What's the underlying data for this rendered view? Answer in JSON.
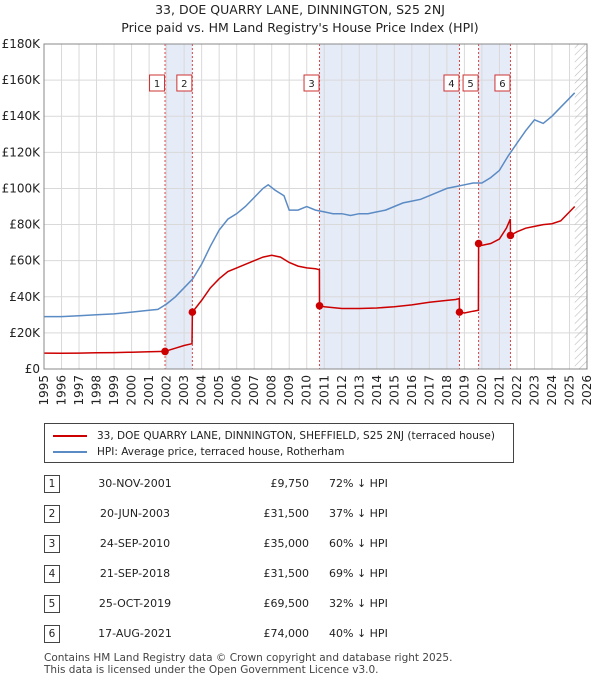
{
  "chart_data": {
    "type": "line",
    "title": "33, DOE QUARRY LANE, DINNINGTON, S25 2NJ",
    "subtitle": "Price paid vs. HM Land Registry's House Price Index (HPI)",
    "xlim": [
      1995,
      2026
    ],
    "ylim": [
      0,
      180000
    ],
    "xticks": [
      1995,
      1996,
      1997,
      1998,
      1999,
      2000,
      2001,
      2002,
      2003,
      2004,
      2005,
      2006,
      2007,
      2008,
      2009,
      2010,
      2011,
      2012,
      2013,
      2014,
      2015,
      2016,
      2017,
      2018,
      2019,
      2020,
      2021,
      2022,
      2023,
      2024,
      2025,
      2026
    ],
    "yticks": [
      0,
      20000,
      40000,
      60000,
      80000,
      100000,
      120000,
      140000,
      160000,
      180000
    ],
    "ytick_labels": [
      "£0",
      "£20K",
      "£40K",
      "£60K",
      "£80K",
      "£100K",
      "£120K",
      "£140K",
      "£160K",
      "£180K"
    ],
    "series": [
      {
        "name": "33, DOE QUARRY LANE, DINNINGTON, SHEFFIELD, S25 2NJ (terraced house)",
        "color": "#cc0000",
        "points": [
          [
            1995.0,
            8800
          ],
          [
            1996.0,
            8700
          ],
          [
            1997.0,
            8800
          ],
          [
            1998.0,
            9000
          ],
          [
            1999.0,
            9100
          ],
          [
            2000.0,
            9300
          ],
          [
            2001.0,
            9500
          ],
          [
            2001.91,
            9750
          ],
          [
            2002.5,
            11500
          ],
          [
            2003.0,
            13000
          ],
          [
            2003.45,
            14000
          ],
          [
            2003.47,
            31500
          ],
          [
            2004.0,
            38000
          ],
          [
            2004.5,
            45000
          ],
          [
            2005.0,
            50000
          ],
          [
            2005.5,
            54000
          ],
          [
            2006.0,
            56000
          ],
          [
            2006.5,
            58000
          ],
          [
            2007.0,
            60000
          ],
          [
            2007.5,
            62000
          ],
          [
            2008.0,
            63000
          ],
          [
            2008.5,
            62000
          ],
          [
            2009.0,
            59000
          ],
          [
            2009.5,
            57000
          ],
          [
            2010.0,
            56000
          ],
          [
            2010.5,
            55500
          ],
          [
            2010.72,
            55000
          ],
          [
            2010.73,
            35000
          ],
          [
            2011.0,
            34500
          ],
          [
            2012.0,
            33500
          ],
          [
            2013.0,
            33500
          ],
          [
            2014.0,
            33800
          ],
          [
            2015.0,
            34500
          ],
          [
            2016.0,
            35500
          ],
          [
            2017.0,
            37000
          ],
          [
            2018.0,
            38000
          ],
          [
            2018.5,
            38500
          ],
          [
            2018.71,
            39000
          ],
          [
            2018.72,
            31500
          ],
          [
            2019.0,
            31000
          ],
          [
            2019.5,
            32000
          ],
          [
            2019.8,
            32500
          ],
          [
            2019.81,
            69500
          ],
          [
            2020.0,
            68500
          ],
          [
            2020.5,
            69500
          ],
          [
            2021.0,
            72000
          ],
          [
            2021.4,
            78000
          ],
          [
            2021.62,
            83000
          ],
          [
            2021.63,
            74000
          ],
          [
            2022.0,
            76000
          ],
          [
            2022.5,
            78000
          ],
          [
            2023.0,
            79000
          ],
          [
            2023.5,
            80000
          ],
          [
            2024.0,
            80500
          ],
          [
            2024.5,
            82000
          ],
          [
            2025.0,
            87000
          ],
          [
            2025.3,
            90000
          ]
        ],
        "transactions": [
          [
            2001.91,
            9750
          ],
          [
            2003.47,
            31500
          ],
          [
            2010.73,
            35000
          ],
          [
            2018.72,
            31500
          ],
          [
            2019.81,
            69500
          ],
          [
            2021.63,
            74000
          ]
        ]
      },
      {
        "name": "HPI: Average price, terraced house, Rotherham",
        "color": "#5b8bc4",
        "points": [
          [
            1995.0,
            29000
          ],
          [
            1996.0,
            29000
          ],
          [
            1997.0,
            29500
          ],
          [
            1998.0,
            30000
          ],
          [
            1999.0,
            30500
          ],
          [
            2000.0,
            31500
          ],
          [
            2001.0,
            32500
          ],
          [
            2001.5,
            33000
          ],
          [
            2002.0,
            36000
          ],
          [
            2002.5,
            40000
          ],
          [
            2003.0,
            45000
          ],
          [
            2003.5,
            50000
          ],
          [
            2004.0,
            58000
          ],
          [
            2004.5,
            68000
          ],
          [
            2005.0,
            77000
          ],
          [
            2005.5,
            83000
          ],
          [
            2006.0,
            86000
          ],
          [
            2006.5,
            90000
          ],
          [
            2007.0,
            95000
          ],
          [
            2007.5,
            100000
          ],
          [
            2007.8,
            102000
          ],
          [
            2008.2,
            99000
          ],
          [
            2008.7,
            96000
          ],
          [
            2009.0,
            88000
          ],
          [
            2009.5,
            88000
          ],
          [
            2010.0,
            90000
          ],
          [
            2010.5,
            88000
          ],
          [
            2011.0,
            87000
          ],
          [
            2011.5,
            86000
          ],
          [
            2012.0,
            86000
          ],
          [
            2012.5,
            85000
          ],
          [
            2013.0,
            86000
          ],
          [
            2013.5,
            86000
          ],
          [
            2014.0,
            87000
          ],
          [
            2014.5,
            88000
          ],
          [
            2015.0,
            90000
          ],
          [
            2015.5,
            92000
          ],
          [
            2016.0,
            93000
          ],
          [
            2016.5,
            94000
          ],
          [
            2017.0,
            96000
          ],
          [
            2017.5,
            98000
          ],
          [
            2018.0,
            100000
          ],
          [
            2018.5,
            101000
          ],
          [
            2019.0,
            102000
          ],
          [
            2019.5,
            103000
          ],
          [
            2020.0,
            103000
          ],
          [
            2020.5,
            106000
          ],
          [
            2021.0,
            110000
          ],
          [
            2021.5,
            118000
          ],
          [
            2022.0,
            125000
          ],
          [
            2022.5,
            132000
          ],
          [
            2023.0,
            138000
          ],
          [
            2023.5,
            136000
          ],
          [
            2024.0,
            140000
          ],
          [
            2024.5,
            145000
          ],
          [
            2025.0,
            150000
          ],
          [
            2025.3,
            153000
          ]
        ]
      }
    ],
    "markers": [
      {
        "label": "1",
        "x": 2001.91
      },
      {
        "label": "2",
        "x": 2003.47
      },
      {
        "label": "3",
        "x": 2010.73
      },
      {
        "label": "4",
        "x": 2018.72
      },
      {
        "label": "5",
        "x": 2019.81
      },
      {
        "label": "6",
        "x": 2021.63
      }
    ],
    "shaded_ranges": [
      [
        2001.91,
        2003.47
      ],
      [
        2010.73,
        2018.72
      ],
      [
        2019.81,
        2021.63
      ]
    ],
    "hatched_from": 2025.3
  },
  "legend": {
    "property_label": "33, DOE QUARRY LANE, DINNINGTON, SHEFFIELD, S25 2NJ (terraced house)",
    "hpi_label": "HPI: Average price, terraced house, Rotherham"
  },
  "transactions_table": [
    {
      "num": "1",
      "date": "30-NOV-2001",
      "price": "£9,750",
      "hpi": "72% ↓ HPI"
    },
    {
      "num": "2",
      "date": "20-JUN-2003",
      "price": "£31,500",
      "hpi": "37% ↓ HPI"
    },
    {
      "num": "3",
      "date": "24-SEP-2010",
      "price": "£35,000",
      "hpi": "60% ↓ HPI"
    },
    {
      "num": "4",
      "date": "21-SEP-2018",
      "price": "£31,500",
      "hpi": "69% ↓ HPI"
    },
    {
      "num": "5",
      "date": "25-OCT-2019",
      "price": "£69,500",
      "hpi": "32% ↓ HPI"
    },
    {
      "num": "6",
      "date": "17-AUG-2021",
      "price": "£74,000",
      "hpi": "40% ↓ HPI"
    }
  ],
  "footer": {
    "line1": "Contains HM Land Registry data © Crown copyright and database right 2025.",
    "line2": "This data is licensed under the Open Government Licence v3.0."
  }
}
